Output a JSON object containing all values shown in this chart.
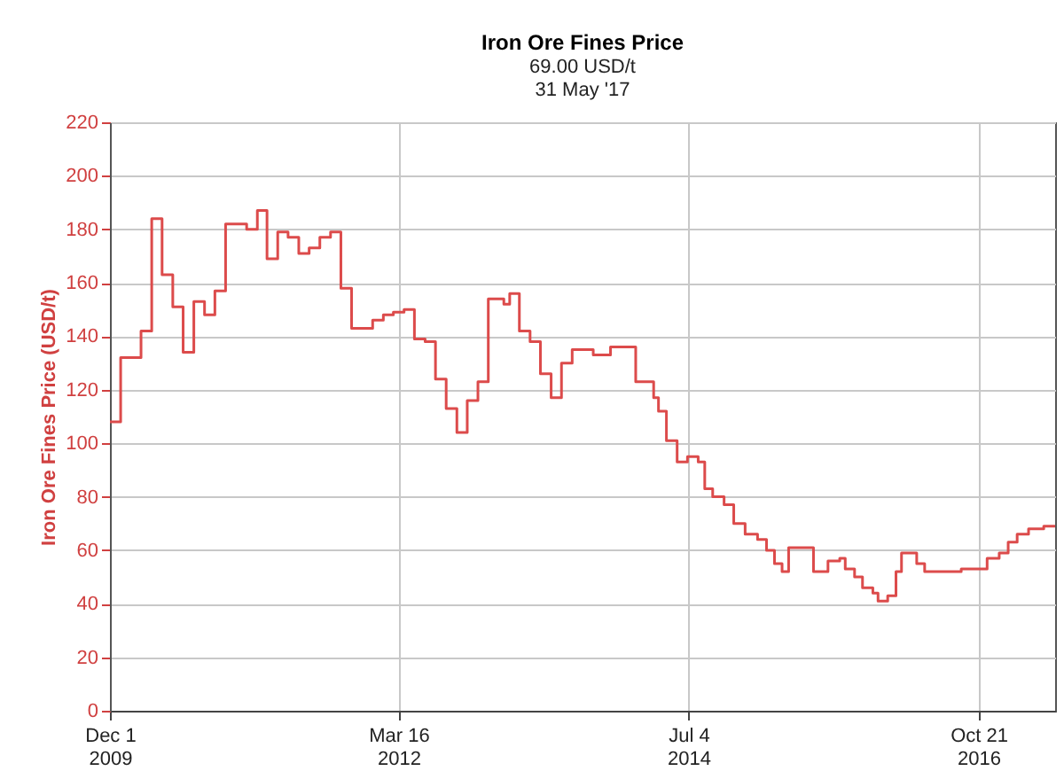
{
  "chart_data": {
    "type": "step",
    "title": "Iron Ore Fines Price",
    "subtitle": "69.00 USD/t\n31 May '17",
    "ylabel": "Iron Ore Fines Price (USD/t)",
    "x": [
      "2009-12-01",
      "2010-01",
      "2010-03",
      "2010-04",
      "2010-05",
      "2010-06",
      "2010-07",
      "2010-08",
      "2010-09",
      "2010-10",
      "2010-11",
      "2011-01",
      "2011-02",
      "2011-03",
      "2011-04",
      "2011-05",
      "2011-06",
      "2011-07",
      "2011-08",
      "2011-09",
      "2011-10",
      "2011-11",
      "2012-01",
      "2012-02",
      "2012-03",
      "2012-04",
      "2012-05",
      "2012-06",
      "2012-07",
      "2012-08",
      "2012-09",
      "2012-10",
      "2012-11",
      "2012-12",
      "2013-01-15",
      "2013-02",
      "2013-03",
      "2013-04",
      "2013-05",
      "2013-06",
      "2013-07",
      "2013-08",
      "2013-10",
      "2013-11-20",
      "2014-02",
      "2014-03-25",
      "2014-04-08",
      "2014-05",
      "2014-06",
      "2014-07",
      "2014-08",
      "2014-08-20",
      "2014-09-12",
      "2014-10-15",
      "2014-11-12",
      "2014-12-15",
      "2015-01-20",
      "2015-02-15",
      "2015-03-10",
      "2015-04-01",
      "2015-04-20",
      "2015-07-01",
      "2015-08-12",
      "2015-09-15",
      "2015-10-01",
      "2015-10-28",
      "2015-11-20",
      "2015-12-20",
      "2016-01-04",
      "2016-02-01",
      "2016-02-25",
      "2016-03-12",
      "2016-04-25",
      "2016-05-18",
      "2016-09-01",
      "2016-11-15",
      "2016-12-20",
      "2017-01-15",
      "2017-02-10",
      "2017-03-15",
      "2017-04-28",
      "2017-05-31"
    ],
    "series": [
      {
        "color": "#dc4b4b",
        "values": [
          108,
          132,
          142,
          184,
          163,
          151,
          134,
          153,
          148,
          157,
          182,
          180,
          187,
          169,
          179,
          177,
          171,
          173,
          177,
          179,
          158,
          143,
          146,
          148,
          149,
          150,
          139,
          138,
          124,
          113,
          104,
          116,
          123,
          154,
          152,
          156,
          142,
          138,
          126,
          117,
          130,
          135,
          133,
          136,
          123,
          117,
          112,
          101,
          93,
          95,
          93,
          83,
          80,
          77,
          70,
          66,
          64,
          60,
          55,
          52,
          61,
          52,
          56,
          57,
          53,
          50,
          46,
          44,
          41,
          43,
          52,
          59,
          55,
          52,
          53,
          57,
          59,
          63,
          66,
          68,
          69,
          69
        ]
      }
    ],
    "xlim": [
      "2009-12-01",
      "2017-05-31"
    ],
    "xticks": [
      {
        "value": "2009-12-01",
        "label": "Dec 1\n2009"
      },
      {
        "value": "2012-03-16",
        "label": "Mar 16\n2012"
      },
      {
        "value": "2014-07-04",
        "label": "Jul 4\n2014"
      },
      {
        "value": "2016-10-21",
        "label": "Oct 21\n2016"
      }
    ],
    "ylim": [
      0,
      220
    ],
    "yticks": [
      0,
      20,
      40,
      60,
      80,
      100,
      120,
      140,
      160,
      180,
      200,
      220
    ],
    "grid": true
  }
}
